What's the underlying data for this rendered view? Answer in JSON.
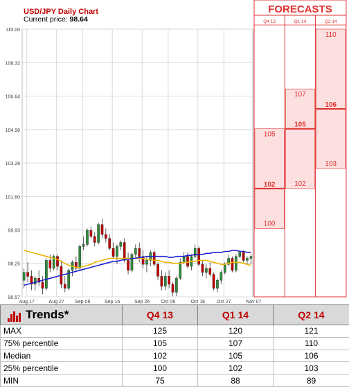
{
  "chart_data": {
    "type": "candlestick",
    "title": "USD/JPY Daily Chart",
    "current_price_label": "Current price:",
    "current_price": "98.64",
    "y_ticks": [
      "110.00",
      "108.32",
      "106.64",
      "104.96",
      "103.28",
      "101.60",
      "99.93",
      "98.25",
      "96.57"
    ],
    "ylim": [
      96.57,
      110.0
    ],
    "x_ticks": [
      "Aug 17",
      "Aug 27",
      "Sep 06",
      "Sep 16",
      "Sep 26",
      "Oct 06",
      "Oct 16",
      "Oct 27",
      "Nov 07"
    ],
    "candles": [
      [
        97.4,
        98.0,
        97.0,
        97.8
      ],
      [
        97.8,
        98.3,
        97.3,
        97.6
      ],
      [
        97.6,
        97.9,
        96.9,
        97.2
      ],
      [
        97.2,
        97.6,
        96.9,
        97.5
      ],
      [
        97.5,
        97.9,
        97.1,
        97.3
      ],
      [
        97.3,
        97.6,
        96.7,
        97.0
      ],
      [
        97.0,
        98.5,
        96.9,
        98.4
      ],
      [
        98.4,
        98.7,
        97.8,
        98.0
      ],
      [
        98.0,
        98.7,
        97.9,
        98.6
      ],
      [
        98.6,
        98.7,
        97.9,
        98.1
      ],
      [
        98.1,
        98.4,
        97.0,
        97.2
      ],
      [
        97.2,
        97.6,
        96.8,
        97.0
      ],
      [
        97.0,
        98.0,
        96.9,
        97.9
      ],
      [
        97.9,
        98.4,
        97.6,
        98.3
      ],
      [
        98.3,
        98.6,
        97.9,
        98.0
      ],
      [
        98.0,
        99.2,
        97.9,
        99.1
      ],
      [
        99.1,
        99.6,
        98.9,
        99.2
      ],
      [
        99.2,
        100.0,
        99.1,
        99.9
      ],
      [
        99.9,
        100.1,
        99.5,
        99.6
      ],
      [
        99.6,
        99.8,
        99.1,
        99.3
      ],
      [
        99.3,
        100.3,
        99.2,
        100.2
      ],
      [
        100.2,
        100.5,
        99.5,
        99.7
      ],
      [
        99.7,
        100.0,
        99.3,
        99.5
      ],
      [
        99.5,
        99.7,
        98.9,
        99.0
      ],
      [
        99.0,
        99.3,
        98.5,
        98.6
      ],
      [
        98.6,
        99.2,
        98.2,
        99.1
      ],
      [
        99.1,
        99.4,
        98.9,
        99.3
      ],
      [
        99.3,
        99.5,
        98.3,
        98.4
      ],
      [
        98.4,
        98.8,
        97.7,
        97.9
      ],
      [
        97.9,
        98.8,
        97.8,
        98.7
      ],
      [
        98.7,
        99.2,
        98.5,
        99.0
      ],
      [
        99.0,
        99.3,
        98.3,
        98.6
      ],
      [
        98.6,
        98.9,
        98.0,
        98.2
      ],
      [
        98.2,
        98.6,
        97.8,
        98.4
      ],
      [
        98.4,
        98.9,
        98.1,
        98.8
      ],
      [
        98.8,
        98.9,
        98.1,
        98.2
      ],
      [
        98.2,
        98.3,
        97.4,
        97.6
      ],
      [
        97.6,
        97.9,
        96.9,
        97.1
      ],
      [
        97.1,
        97.8,
        96.9,
        97.6
      ],
      [
        97.6,
        97.9,
        97.0,
        97.2
      ],
      [
        97.2,
        97.3,
        96.6,
        96.8
      ],
      [
        96.8,
        97.6,
        96.6,
        97.5
      ],
      [
        97.5,
        98.5,
        97.4,
        98.3
      ],
      [
        98.3,
        98.8,
        98.2,
        98.6
      ],
      [
        98.6,
        98.8,
        98.0,
        98.1
      ],
      [
        98.1,
        98.7,
        97.9,
        98.6
      ],
      [
        98.6,
        99.2,
        98.5,
        99.0
      ],
      [
        99.0,
        99.1,
        98.1,
        98.2
      ],
      [
        98.2,
        98.4,
        97.6,
        97.8
      ],
      [
        97.8,
        98.2,
        97.5,
        98.0
      ],
      [
        98.0,
        98.3,
        97.6,
        97.7
      ],
      [
        97.7,
        97.8,
        96.9,
        97.0
      ],
      [
        97.0,
        97.5,
        96.8,
        97.4
      ],
      [
        97.4,
        97.9,
        97.2,
        97.8
      ],
      [
        97.8,
        98.3,
        97.7,
        98.2
      ],
      [
        98.2,
        98.7,
        98.1,
        98.5
      ],
      [
        98.5,
        98.6,
        97.8,
        97.9
      ],
      [
        97.9,
        98.7,
        97.8,
        98.6
      ],
      [
        98.6,
        98.9,
        98.5,
        98.8
      ],
      [
        98.8,
        98.9,
        98.3,
        98.4
      ],
      [
        98.4,
        98.6,
        98.2,
        98.5
      ],
      [
        98.5,
        98.7,
        98.2,
        98.6
      ]
    ],
    "series": [
      {
        "name": "",
        "color": "#f0b400",
        "values": [
          98.9,
          98.85,
          98.8,
          98.75,
          98.7,
          98.65,
          98.6,
          98.55,
          98.5,
          98.45,
          98.35,
          98.25,
          98.15,
          98.1,
          98.05,
          98.05,
          98.1,
          98.15,
          98.2,
          98.3,
          98.35,
          98.4,
          98.45,
          98.5,
          98.5,
          98.5,
          98.5,
          98.5,
          98.5,
          98.5,
          98.5,
          98.5,
          98.5,
          98.45,
          98.45,
          98.4,
          98.4,
          98.35,
          98.3,
          98.3,
          98.25,
          98.25,
          98.25,
          98.3,
          98.3,
          98.35,
          98.35,
          98.4,
          98.4,
          98.4,
          98.35,
          98.3,
          98.25,
          98.2,
          98.2,
          98.25,
          98.3,
          98.3,
          98.3,
          98.25,
          98.2,
          98.15
        ]
      },
      {
        "name": "",
        "color": "#2020d0",
        "values": [
          97.15,
          97.2,
          97.25,
          97.3,
          97.35,
          97.4,
          97.45,
          97.5,
          97.55,
          97.6,
          97.65,
          97.7,
          97.75,
          97.8,
          97.85,
          97.9,
          97.95,
          98.0,
          98.05,
          98.1,
          98.15,
          98.2,
          98.25,
          98.3,
          98.35,
          98.35,
          98.4,
          98.45,
          98.45,
          98.5,
          98.5,
          98.55,
          98.55,
          98.6,
          98.6,
          98.6,
          98.6,
          98.6,
          98.6,
          98.55,
          98.55,
          98.6,
          98.6,
          98.6,
          98.65,
          98.65,
          98.7,
          98.7,
          98.7,
          98.75,
          98.75,
          98.8,
          98.8,
          98.8,
          98.85,
          98.85,
          98.9,
          98.9,
          98.85,
          98.85,
          98.8,
          98.8
        ]
      }
    ],
    "forecasts": {
      "title": "FORECASTS",
      "columns": [
        {
          "label": "Q4 13",
          "high": 105,
          "median": 102,
          "low": 100,
          "high_text": "105",
          "median_text": "102",
          "low_text": "100"
        },
        {
          "label": "Q1 14",
          "high": 107,
          "median": 105,
          "low": 102,
          "high_text": "107",
          "median_text": "105",
          "low_text": "102"
        },
        {
          "label": "Q2 14",
          "high": 110,
          "median": 106,
          "low": 103,
          "high_text": "110",
          "median_text": "106",
          "low_text": "103"
        }
      ]
    },
    "colors": {
      "up": "#2e8b3a",
      "down": "#c00000",
      "forecast": "#e03030",
      "forecast_fill": "#fce0e0"
    }
  },
  "trends": {
    "title": "Trends*",
    "columns": [
      "Q4 13",
      "Q1 14",
      "Q2 14"
    ],
    "rows": [
      {
        "label": "MAX",
        "values": [
          "125",
          "120",
          "121"
        ]
      },
      {
        "label": "75% percentile",
        "values": [
          "105",
          "107",
          "110"
        ]
      },
      {
        "label": "Median",
        "values": [
          "102",
          "105",
          "106"
        ]
      },
      {
        "label": "25% percentile",
        "values": [
          "100",
          "102",
          "103"
        ]
      },
      {
        "label": "MIN",
        "values": [
          "75",
          "88",
          "89"
        ]
      }
    ]
  }
}
